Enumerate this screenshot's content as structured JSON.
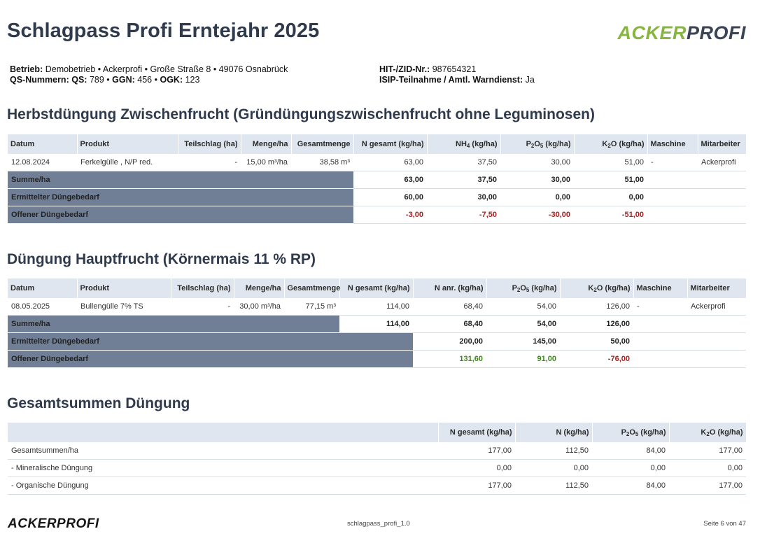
{
  "header": {
    "title": "Schlagpass Profi Erntejahr 2025",
    "logo_part1": "ACKER",
    "logo_part2": "PROFI"
  },
  "meta": {
    "betrieb_label": "Betrieb:",
    "betrieb_value": "Demobetrieb • Ackerprofi • Große Straße 8 • 49076 Osnabrück",
    "qs_label": "QS-Nummern:",
    "qs_qs_label": "QS:",
    "qs_qs_value": "789 •",
    "qs_ggn_label": "GGN:",
    "qs_ggn_value": "456 •",
    "qs_ogk_label": "OGK:",
    "qs_ogk_value": "123",
    "hit_label": "HIT-/ZID-Nr.:",
    "hit_value": "987654321",
    "isip_label": "ISIP-Teilnahme / Amtl. Warndienst:",
    "isip_value": "Ja"
  },
  "section1": {
    "title": "Herbstdüngung Zwischenfrucht (Gründüngungszwischenfrucht ohne Leguminosen)",
    "headers": {
      "datum": "Datum",
      "produkt": "Produkt",
      "teilschlag": "Teilschlag (ha)",
      "menge": "Menge/ha",
      "gesamtmenge": "Gesamtmenge",
      "n_gesamt": "N gesamt (kg/ha)",
      "nh4_a": "NH",
      "nh4_sub": "4",
      "nh4_b": " (kg/ha)",
      "p_a": "P",
      "p_sub1": "2",
      "p_b": "O",
      "p_sub2": "5",
      "p_c": " (kg/ha)",
      "k_a": "K",
      "k_sub": "2",
      "k_b": "O (kg/ha)",
      "maschine": "Maschine",
      "mitarbeiter": "Mitarbeiter"
    },
    "row": {
      "datum": "12.08.2024",
      "produkt": "Ferkelgülle , N/P red.",
      "teilschlag": "-",
      "menge": "15,00 m³/ha",
      "gesamtmenge": "38,58 m³",
      "n_gesamt": "63,00",
      "nh4": "37,50",
      "p2o5": "30,00",
      "k2o": "51,00",
      "maschine": "-",
      "mitarbeiter": "Ackerprofi"
    },
    "summe": {
      "label": "Summe/ha",
      "n": "63,00",
      "nh4": "37,50",
      "p": "30,00",
      "k": "51,00"
    },
    "ermittelt": {
      "label": "Ermittelter Düngebedarf",
      "n": "60,00",
      "nh4": "30,00",
      "p": "0,00",
      "k": "0,00"
    },
    "offen": {
      "label": "Offener Düngebedarf",
      "n": "-3,00",
      "nh4": "-7,50",
      "p": "-30,00",
      "k": "-51,00"
    }
  },
  "section2": {
    "title": "Düngung Hauptfrucht (Körnermais 11 % RP)",
    "headers": {
      "datum": "Datum",
      "produkt": "Produkt",
      "teilschlag": "Teilschlag (ha)",
      "menge": "Menge/ha",
      "gesamtmenge": "Gesamtmenge",
      "n_gesamt": "N gesamt (kg/ha)",
      "n_anr": "N anr. (kg/ha)",
      "p_a": "P",
      "p_sub1": "2",
      "p_b": "O",
      "p_sub2": "5",
      "p_c": " (kg/ha)",
      "k_a": "K",
      "k_sub": "2",
      "k_b": "O (kg/ha)",
      "maschine": "Maschine",
      "mitarbeiter": "Mitarbeiter"
    },
    "row": {
      "datum": "08.05.2025",
      "produkt": "Bullengülle 7% TS",
      "teilschlag": "-",
      "menge": "30,00 m³/ha",
      "gesamtmenge": "77,15 m³",
      "n_gesamt": "114,00",
      "n_anr": "68,40",
      "p2o5": "54,00",
      "k2o": "126,00",
      "maschine": "-",
      "mitarbeiter": "Ackerprofi"
    },
    "summe": {
      "label": "Summe/ha",
      "n": "114,00",
      "n_anr": "68,40",
      "p": "54,00",
      "k": "126,00"
    },
    "ermittelt": {
      "label": "Ermittelter Düngebedarf",
      "n_anr": "200,00",
      "p": "145,00",
      "k": "50,00"
    },
    "offen": {
      "label": "Offener Düngebedarf",
      "n_anr": "131,60",
      "p": "91,00",
      "k": "-76,00"
    }
  },
  "section3": {
    "title": "Gesamtsummen Düngung",
    "headers": {
      "n_gesamt": "N gesamt (kg/ha)",
      "n": "N (kg/ha)",
      "p_a": "P",
      "p_sub1": "2",
      "p_b": "O",
      "p_sub2": "5",
      "p_c": " (kg/ha)",
      "k_a": "K",
      "k_sub": "2",
      "k_b": "O (kg/ha)"
    },
    "rows": [
      {
        "label": "Gesamtsummen/ha",
        "n_gesamt": "177,00",
        "n": "112,50",
        "p": "84,00",
        "k": "177,00"
      },
      {
        "label": "- Mineralische Düngung",
        "n_gesamt": "0,00",
        "n": "0,00",
        "p": "0,00",
        "k": "0,00"
      },
      {
        "label": "- Organische Düngung",
        "n_gesamt": "177,00",
        "n": "112,50",
        "p": "84,00",
        "k": "177,00"
      }
    ]
  },
  "footer": {
    "logo": "ACKERPROFI",
    "doc_name": "schlagpass_profi_1.0",
    "page": "Seite 6 von 47"
  },
  "colors": {
    "title": "#2f3a4c",
    "logo_green": "#86b540",
    "header_bg": "#dfe6ef",
    "label_bg": "#707f96",
    "negative": "#b01c1c",
    "positive": "#3a8a14"
  }
}
